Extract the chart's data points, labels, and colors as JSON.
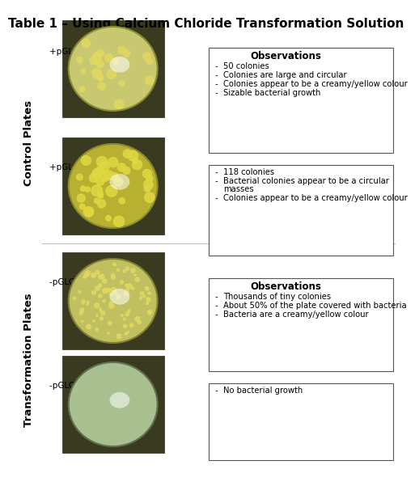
{
  "title": "Table 1 – Using Calcium Chloride Transformation Solution",
  "title_fontsize": 11,
  "title_fontweight": "bold",
  "bg_color": "#ffffff",
  "rows": [
    {
      "section": "Control Plates",
      "plate_label": "+pGLO W – LB/amp",
      "obs_header": "Observations",
      "observations": [
        "50 colonies",
        "Colonies are large and circular",
        "Colonies appear to be a creamy/yellow colour",
        "Sizable bacterial growth"
      ],
      "plate_bg": "#c8c870",
      "plate_outer": "#8a8a30",
      "colony_color": "#e0d860",
      "n_colonies": 22,
      "colony_size_min": 3,
      "colony_size_max": 6
    },
    {
      "section": "Control Plates",
      "plate_label": "+pGLO W – LB/amp/ara",
      "obs_header": "",
      "observations": [
        "118 colonies",
        "Bacterial colonies appear to be a circular\nmasses",
        "Colonies appear to be a creamy/yellow colour"
      ],
      "plate_bg": "#b8b030",
      "plate_outer": "#8a8a30",
      "colony_color": "#e0d840",
      "n_colonies": 40,
      "colony_size_min": 3,
      "colony_size_max": 7
    },
    {
      "section": "Transformation Plates",
      "plate_label": "-pGLO W - LB",
      "obs_header": "Observations",
      "observations": [
        "Thousands of tiny colonies",
        "About 50% of the plate covered with bacteria",
        "Bacteria are a creamy/yellow colour"
      ],
      "plate_bg": "#c0c060",
      "plate_outer": "#808030",
      "colony_color": "#e0d860",
      "n_colonies": 80,
      "colony_size_min": 1,
      "colony_size_max": 3
    },
    {
      "section": "Transformation Plates",
      "plate_label": "-pGLO W – LB/amp",
      "obs_header": "",
      "observations": [
        "No bacterial growth"
      ],
      "plate_bg": "#a8c090",
      "plate_outer": "#607050",
      "colony_color": "#c0d0a0",
      "n_colonies": 0,
      "colony_size_min": 2,
      "colony_size_max": 4
    }
  ]
}
